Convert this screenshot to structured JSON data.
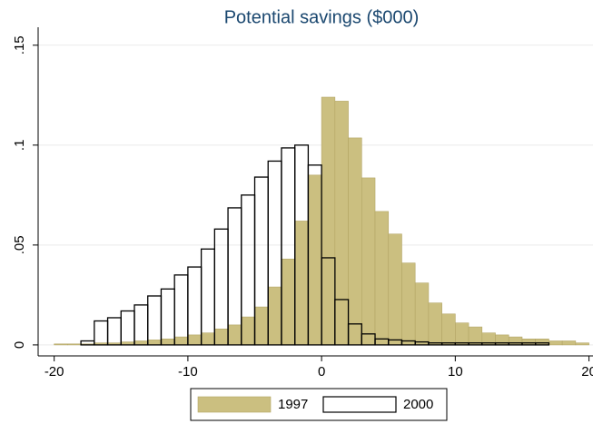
{
  "chart_data": {
    "type": "histogram",
    "title": "Potential savings ($000)",
    "xlim": [
      -21.2,
      20.3
    ],
    "ylim": [
      -0.0055,
      0.159
    ],
    "xticks": [
      -20,
      -10,
      0,
      10,
      20
    ],
    "yticks": [
      0,
      {
        "value": 0.05,
        "label": ".05"
      },
      {
        "value": 0.1,
        "label": ".1"
      },
      {
        "value": 0.15,
        "label": ".15"
      }
    ],
    "grid": true,
    "legend": "bottom",
    "series": [
      {
        "name": "1997",
        "color": "#cbbf80",
        "edge": "#b3a565",
        "bins": [
          -20,
          -19,
          -18,
          -17,
          -16,
          -15,
          -14,
          -13,
          -12,
          -11,
          -10,
          -9,
          -8,
          -7,
          -6,
          -5,
          -4,
          -3,
          -2,
          -1,
          0,
          1,
          2,
          3,
          4,
          5,
          6,
          7,
          8,
          9,
          10,
          11,
          12,
          13,
          14,
          15,
          16,
          17,
          18,
          19,
          20
        ],
        "values": [
          0.0005,
          0.0005,
          0.0005,
          0.001,
          0.001,
          0.0015,
          0.002,
          0.0025,
          0.003,
          0.004,
          0.005,
          0.006,
          0.008,
          0.01,
          0.014,
          0.019,
          0.029,
          0.043,
          0.062,
          0.085,
          0.124,
          0.122,
          0.1036,
          0.0836,
          0.0668,
          0.0555,
          0.041,
          0.031,
          0.021,
          0.0155,
          0.011,
          0.009,
          0.006,
          0.005,
          0.004,
          0.003,
          0.003,
          0.002,
          0.002,
          0.001
        ]
      },
      {
        "name": "2000",
        "color": "#ffffff",
        "edge": "#000000",
        "bins": [
          -18,
          -17,
          -16,
          -15,
          -14,
          -13,
          -12,
          -11,
          -10,
          -9,
          -8,
          -7,
          -6,
          -5,
          -4,
          -3,
          -2,
          -1,
          0,
          1,
          2,
          3,
          4,
          5,
          6,
          7,
          8,
          9,
          10,
          11,
          12,
          13,
          14,
          15,
          16,
          17
        ],
        "values": [
          0.002,
          0.012,
          0.0136,
          0.017,
          0.02,
          0.0245,
          0.028,
          0.035,
          0.039,
          0.048,
          0.058,
          0.0686,
          0.075,
          0.084,
          0.092,
          0.0986,
          0.1,
          0.09,
          0.0436,
          0.0227,
          0.0105,
          0.0055,
          0.003,
          0.0025,
          0.002,
          0.0015,
          0.001,
          0.001,
          0.001,
          0.001,
          0.001,
          0.001,
          0.001,
          0.001,
          0.001
        ]
      }
    ]
  }
}
